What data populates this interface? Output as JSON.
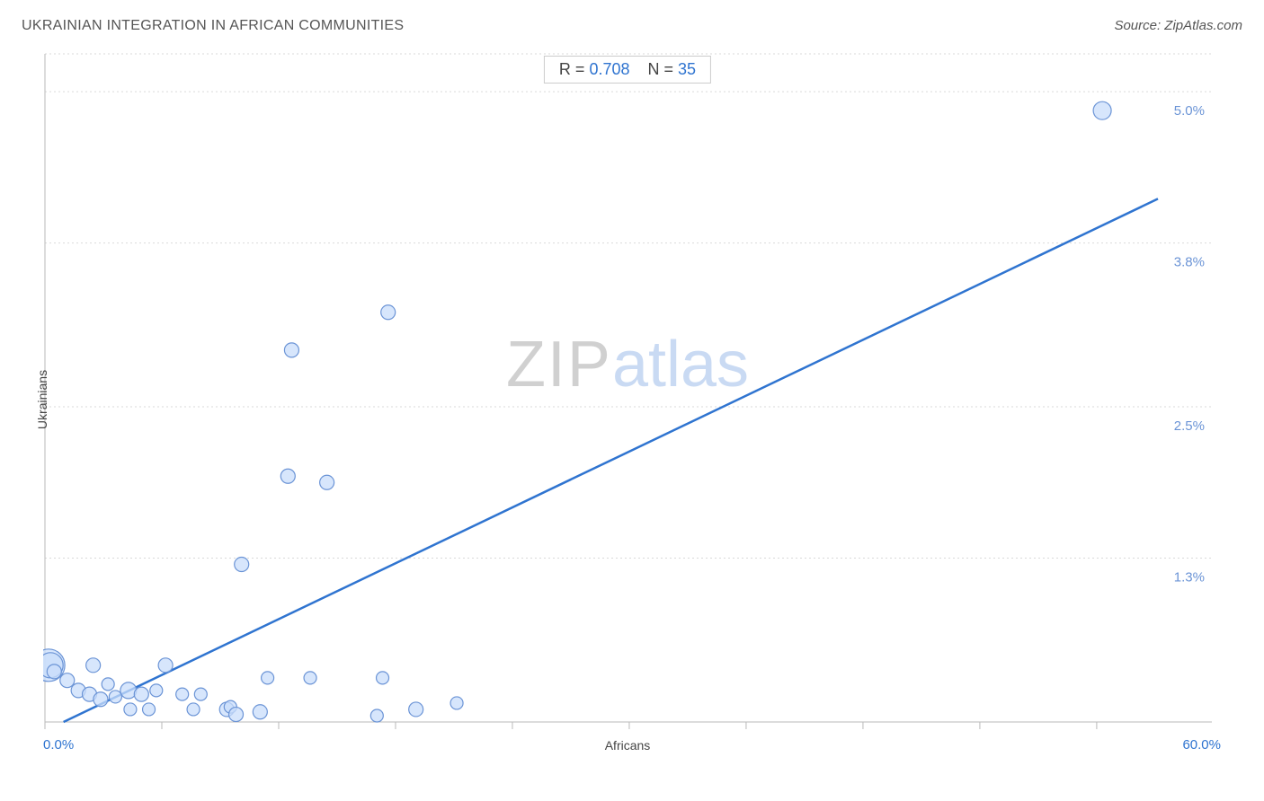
{
  "header": {
    "title": "UKRAINIAN INTEGRATION IN AFRICAN COMMUNITIES",
    "source": "Source: ZipAtlas.com"
  },
  "stats": {
    "r_label": "R =",
    "r_value": "0.708",
    "n_label": "N =",
    "n_value": "35"
  },
  "watermark": {
    "zip": "ZIP",
    "atlas": "atlas"
  },
  "chart": {
    "type": "scatter",
    "xlabel": "Africans",
    "ylabel": "Ukrainians",
    "xlim": [
      0,
      60
    ],
    "ylim": [
      0,
      5.3
    ],
    "x_min_label": "0.0%",
    "x_max_label": "60.0%",
    "x_ticks": [
      0,
      6.3,
      12.6,
      18.9,
      25.2,
      31.5,
      37.8,
      44.1,
      50.4,
      56.7
    ],
    "y_gridlines": [
      {
        "y": 5.3,
        "label": ""
      },
      {
        "y": 5.0,
        "label": "5.0%"
      },
      {
        "y": 3.8,
        "label": "3.8%"
      },
      {
        "y": 2.5,
        "label": "2.5%"
      },
      {
        "y": 1.3,
        "label": "1.3%"
      }
    ],
    "background_color": "#ffffff",
    "grid_color": "#d9d9d9",
    "axis_color": "#bababa",
    "tick_label_color": "#6b94d6",
    "trend_line": {
      "x1": 1.0,
      "y1": 0.0,
      "x2": 60.0,
      "y2": 4.15,
      "color": "#2f74d0",
      "width": 2.5
    },
    "point_fill": "#c9defb",
    "point_stroke": "#6b94d6",
    "point_stroke_width": 1.2,
    "points": [
      {
        "x": 0.2,
        "y": 0.45,
        "r": 18
      },
      {
        "x": 0.3,
        "y": 0.45,
        "r": 14
      },
      {
        "x": 0.5,
        "y": 0.4,
        "r": 8
      },
      {
        "x": 1.2,
        "y": 0.33,
        "r": 8
      },
      {
        "x": 1.8,
        "y": 0.25,
        "r": 8
      },
      {
        "x": 2.4,
        "y": 0.22,
        "r": 8
      },
      {
        "x": 2.6,
        "y": 0.45,
        "r": 8
      },
      {
        "x": 3.0,
        "y": 0.18,
        "r": 8
      },
      {
        "x": 3.4,
        "y": 0.3,
        "r": 7
      },
      {
        "x": 3.8,
        "y": 0.2,
        "r": 7
      },
      {
        "x": 4.5,
        "y": 0.25,
        "r": 9
      },
      {
        "x": 4.6,
        "y": 0.1,
        "r": 7
      },
      {
        "x": 5.2,
        "y": 0.22,
        "r": 8
      },
      {
        "x": 5.6,
        "y": 0.1,
        "r": 7
      },
      {
        "x": 6.0,
        "y": 0.25,
        "r": 7
      },
      {
        "x": 6.5,
        "y": 0.45,
        "r": 8
      },
      {
        "x": 7.4,
        "y": 0.22,
        "r": 7
      },
      {
        "x": 8.0,
        "y": 0.1,
        "r": 7
      },
      {
        "x": 8.4,
        "y": 0.22,
        "r": 7
      },
      {
        "x": 9.8,
        "y": 0.1,
        "r": 8
      },
      {
        "x": 10.0,
        "y": 0.12,
        "r": 7
      },
      {
        "x": 10.3,
        "y": 0.06,
        "r": 8
      },
      {
        "x": 10.6,
        "y": 1.25,
        "r": 8
      },
      {
        "x": 11.6,
        "y": 0.08,
        "r": 8
      },
      {
        "x": 12.0,
        "y": 0.35,
        "r": 7
      },
      {
        "x": 13.1,
        "y": 1.95,
        "r": 8
      },
      {
        "x": 13.3,
        "y": 2.95,
        "r": 8
      },
      {
        "x": 14.3,
        "y": 0.35,
        "r": 7
      },
      {
        "x": 15.2,
        "y": 1.9,
        "r": 8
      },
      {
        "x": 17.9,
        "y": 0.05,
        "r": 7
      },
      {
        "x": 18.2,
        "y": 0.35,
        "r": 7
      },
      {
        "x": 18.5,
        "y": 3.25,
        "r": 8
      },
      {
        "x": 20.0,
        "y": 0.1,
        "r": 8
      },
      {
        "x": 22.2,
        "y": 0.15,
        "r": 7
      },
      {
        "x": 57.0,
        "y": 4.85,
        "r": 10
      }
    ]
  }
}
